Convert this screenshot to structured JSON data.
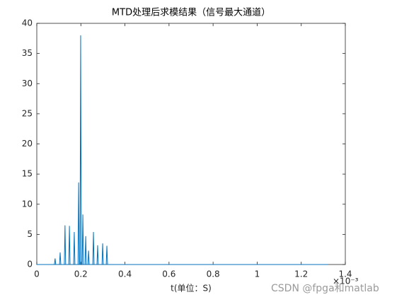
{
  "chart_data": {
    "type": "line",
    "title": "MTD处理后求模结果（信号最大通道）",
    "x_label": "t(单位：S)",
    "x_scale_label": "×10⁻³",
    "watermark": "CSDN @fpga和matlab",
    "color": "#0072bd",
    "x": [
      0,
      0.08,
      0.083,
      0.086,
      0.103,
      0.106,
      0.109,
      0.125,
      0.128,
      0.131,
      0.145,
      0.148,
      0.151,
      0.167,
      0.17,
      0.173,
      0.187,
      0.19,
      0.193,
      0.196,
      0.199,
      0.202,
      0.206,
      0.209,
      0.212,
      0.219,
      0.222,
      0.225,
      0.232,
      0.235,
      0.238,
      0.254,
      0.257,
      0.26,
      0.273,
      0.276,
      0.279,
      0.296,
      0.299,
      0.302,
      0.315,
      0.318,
      0.321,
      1.32
    ],
    "values": [
      0,
      0,
      1,
      0,
      0,
      2,
      0,
      0,
      6.5,
      0,
      0,
      6.4,
      0,
      0,
      5.4,
      0,
      0,
      13.6,
      0,
      0,
      38,
      0,
      0,
      8.3,
      0,
      0,
      4.7,
      0,
      0,
      2.3,
      0,
      0,
      5.4,
      0,
      0,
      3.2,
      0,
      0,
      3.5,
      0,
      0,
      3.1,
      0,
      0
    ],
    "xlim": [
      0,
      1.4
    ],
    "xticks": [
      0,
      0.2,
      0.4,
      0.6,
      0.8,
      1,
      1.2,
      1.4
    ],
    "ylim": [
      0,
      40
    ],
    "yticks": [
      0,
      5,
      10,
      15,
      20,
      25,
      30,
      35,
      40
    ]
  }
}
